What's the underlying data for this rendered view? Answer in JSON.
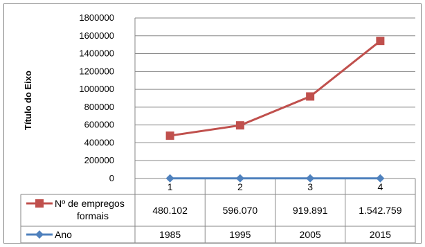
{
  "chart_data": {
    "type": "line",
    "title": "",
    "ylabel": "Título do Eixo",
    "xlabel": "",
    "ylim": [
      0,
      1800000
    ],
    "y_ticks": [
      "0",
      "200000",
      "400000",
      "600000",
      "800000",
      "1000000",
      "1200000",
      "1400000",
      "1600000",
      "1800000"
    ],
    "categories": [
      "1",
      "2",
      "3",
      "4"
    ],
    "grid": true,
    "legend_placement": "data-table-left",
    "series": [
      {
        "name": "Nº de empregos formais",
        "values": [
          480102,
          596070,
          919891,
          1542759
        ],
        "table_values": [
          "480.102",
          "596.070",
          "919.891",
          "1.542.759"
        ],
        "marker": "square",
        "color": "#c0504d"
      },
      {
        "name": "Ano",
        "values": [
          1985,
          1995,
          2005,
          2015
        ],
        "table_values": [
          "1985",
          "1995",
          "2005",
          "2015"
        ],
        "marker": "diamond",
        "color": "#4f81bd"
      }
    ]
  }
}
